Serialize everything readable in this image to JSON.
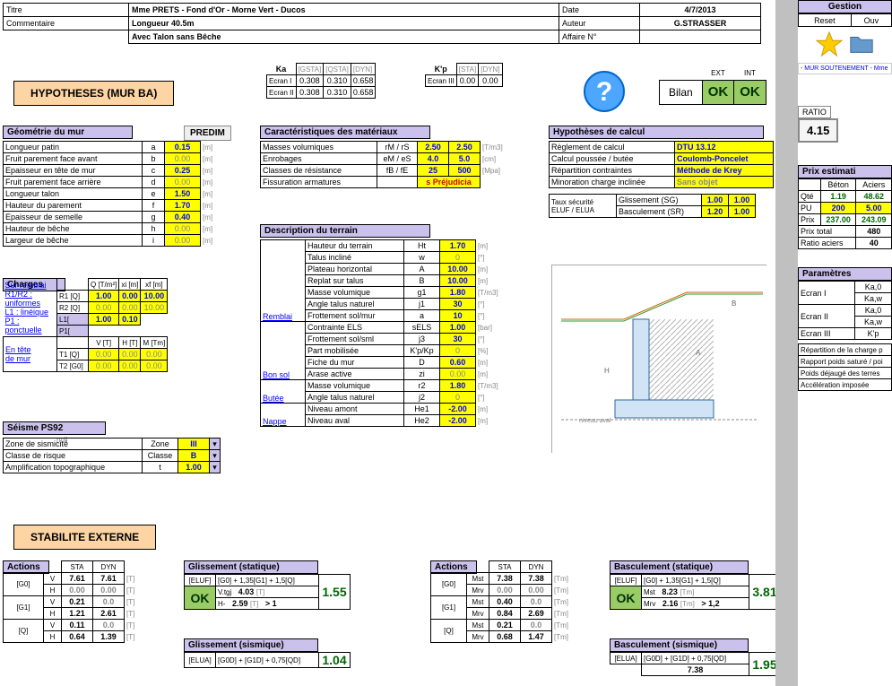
{
  "header": {
    "titre_label": "Titre",
    "titre_value": "Mme PRETS - Fond d'Or - Morne Vert - Ducos",
    "comment_label": "Commentaire",
    "comment_value1": "Longueur 40.5m",
    "comment_value2": "Avec Talon sans Bêche",
    "date_label": "Date",
    "date_value": "4/7/2013",
    "auteur_label": "Auteur",
    "auteur_value": "G.STRASSER",
    "affaire_label": "Affaire N°",
    "affaire_value": ""
  },
  "hypotheses_title": "HYPOTHESES (MUR BA)",
  "ka_table": {
    "ka_label": "Ka",
    "kp_label": "K'p",
    "cols1": [
      "[GSTA]",
      "[QSTA]",
      "[DYN]"
    ],
    "cols2": [
      "[STA]",
      "[DYN]"
    ],
    "ecran1": "Ecran I",
    "r1": [
      "0.308",
      "0.310",
      "0.658"
    ],
    "ecran2": "Ecran II",
    "r2": [
      "0.308",
      "0.310",
      "0.658"
    ],
    "ecran3": "Ecran III",
    "r3": [
      "0.00",
      "0.00"
    ]
  },
  "bilan": {
    "label": "Bilan",
    "ext": "EXT",
    "int": "INT",
    "ok1": "OK",
    "ok2": "OK"
  },
  "predim_btn": "PREDIM",
  "geom": {
    "hdr": "Géométrie du mur",
    "rows": [
      {
        "label": "Longueur patin",
        "sym": "a",
        "val": "0.15",
        "u": "[m]"
      },
      {
        "label": "Fruit parement face avant",
        "sym": "b",
        "val": "0.00",
        "u": "[m]"
      },
      {
        "label": "Epaisseur en tête de mur",
        "sym": "c",
        "val": "0.25",
        "u": "[m]"
      },
      {
        "label": "Fruit parement face arrière",
        "sym": "d",
        "val": "0.00",
        "u": "[m]"
      },
      {
        "label": "Longueur talon",
        "sym": "e",
        "val": "1.50",
        "u": "[m]"
      },
      {
        "label": "Hauteur du parement",
        "sym": "f",
        "val": "1.70",
        "u": "[m]"
      },
      {
        "label": "Epaisseur de semelle",
        "sym": "g",
        "val": "0.40",
        "u": "[m]"
      },
      {
        "label": "Hauteur de bêche",
        "sym": "h",
        "val": "0.00",
        "u": "[m]"
      },
      {
        "label": "Largeur de bêche",
        "sym": "i",
        "val": "0.00",
        "u": "[m]"
      }
    ]
  },
  "charges": {
    "hdr": "Charges",
    "sub1": "Sur remblai",
    "sub2": "R1/R2 :",
    "sub3": "uniformes",
    "sub4": "L1 : linéique",
    "sub5": "P1 : ponctuelle",
    "sub6": "En tête",
    "sub7": "de mur",
    "cols": [
      "Q [T/m²]",
      "xi [m]",
      "xf [m]"
    ],
    "R1": "R1 [Q]",
    "R1v": [
      "1.00",
      "0.00",
      "10.00"
    ],
    "R2": "R2 [Q]",
    "R2v": [
      "0.00",
      "0.00",
      "10.00"
    ],
    "L1": "L1[",
    "P1": "P1[",
    "L1P1": [
      "1.00",
      "0.10"
    ],
    "cols2": [
      "V [T]",
      "H [T]",
      "M [Tm]"
    ],
    "T1": "T1 [Q]",
    "T1v": [
      "0.00",
      "0.00",
      "0.00"
    ],
    "T2": "T2 [G0]",
    "T2v": [
      "0.00",
      "0.00",
      "0.00"
    ]
  },
  "seisme": {
    "hdr": "Séisme PS92",
    "null": "null",
    "rows": [
      {
        "label": "Zone de sismicité",
        "s": "Zone",
        "v": "III"
      },
      {
        "label": "Classe de risque",
        "s": "Classe",
        "v": "B"
      },
      {
        "label": "Amplification topographique",
        "s": "t",
        "v": "1.00"
      }
    ]
  },
  "materiaux": {
    "hdr": "Caractéristiques des matériaux",
    "rows": [
      {
        "label": "Masses volumiques",
        "s": "rM / rS",
        "v1": "2.50",
        "v2": "2.50",
        "u": "[T/m3]"
      },
      {
        "label": "Enrobages",
        "s": "eM / eS",
        "v1": "4.0",
        "v2": "5.0",
        "u": "[cm]"
      },
      {
        "label": "Classes de résistance",
        "s": "fB / fE",
        "v1": "25",
        "v2": "500",
        "u": "[Mpa]"
      },
      {
        "label": "Fissuration armatures",
        "s": "",
        "v1": "s Préjudicia",
        "v2": "",
        "u": ""
      }
    ]
  },
  "terrain": {
    "hdr": "Description du terrain",
    "remblai": "Remblai",
    "bonsol": "Bon sol",
    "butee": "Butée",
    "nappe": "Nappe",
    "rows": [
      {
        "g": "r",
        "label": "Hauteur du terrain",
        "s": "Ht",
        "v": "1.70",
        "u": "[m]"
      },
      {
        "g": "r",
        "label": "Talus incliné",
        "s": "w",
        "v": "0",
        "u": "[°]"
      },
      {
        "g": "r",
        "label": "Plateau horizontal",
        "s": "A",
        "v": "10.00",
        "u": "[m]"
      },
      {
        "g": "r",
        "label": "Replat sur talus",
        "s": "B",
        "v": "10.00",
        "u": "[m]"
      },
      {
        "g": "r",
        "label": "Masse volumique",
        "s": "g1",
        "v": "1.80",
        "u": "[T/m3]"
      },
      {
        "g": "r",
        "label": "Angle talus naturel",
        "s": "j1",
        "v": "30",
        "u": "[°]"
      },
      {
        "g": "r",
        "label": "Frottement sol/mur",
        "s": "a",
        "v": "10",
        "u": "[°]"
      },
      {
        "g": "b",
        "label": "Contrainte ELS",
        "s": "sELS",
        "v": "1.00",
        "u": "[bar]"
      },
      {
        "g": "b",
        "label": "Frottement sol/sml",
        "s": "j3",
        "v": "30",
        "u": "[°]"
      },
      {
        "g": "b",
        "label": "Part mobilisée",
        "s": "K'p/Kp",
        "v": "0",
        "u": "[%]"
      },
      {
        "g": "b",
        "label": "Fiche du mur",
        "s": "D",
        "v": "0.60",
        "u": "[m]"
      },
      {
        "g": "b",
        "label": "Arase active",
        "s": "zi",
        "v": "0.00",
        "u": "[m]"
      },
      {
        "g": "u",
        "label": "Masse volumique",
        "s": "r2",
        "v": "1.80",
        "u": "[T/m3]"
      },
      {
        "g": "u",
        "label": "Angle talus naturel",
        "s": "j2",
        "v": "0",
        "u": "[°]"
      },
      {
        "g": "n",
        "label": "Niveau amont",
        "s": "He1",
        "v": "-2.00",
        "u": "[m]"
      },
      {
        "g": "n",
        "label": "Niveau aval",
        "s": "He2",
        "v": "-2.00",
        "u": "[m]"
      }
    ]
  },
  "hypcalc": {
    "hdr": "Hypothèses de calcul",
    "rows": [
      {
        "label": "Règlement de calcul",
        "v": "DTU 13.12"
      },
      {
        "label": "Calcul poussée / butée",
        "v": "Coulomb-Poncelet"
      },
      {
        "label": "Répartition contraintes",
        "v": "Méthode de Krey"
      },
      {
        "label": "Minoration charge inclinée",
        "v": "Sans objet"
      }
    ],
    "taux": "Taux sécurité",
    "eluf": "ELUF / ELUA",
    "gliss": "Glissement (SG)",
    "gv1": "1.00",
    "gv2": "1.00",
    "basc": "Basculement (SR)",
    "bv1": "1.20",
    "bv2": "1.00"
  },
  "stab_ext_title": "STABILITE EXTERNE",
  "actions1": {
    "hdr": "Actions",
    "c1": "STA",
    "c2": "DYN",
    "g0": "[G0]",
    "g1": "[G1]",
    "q": "[Q]",
    "rows": [
      [
        "V",
        "7.61",
        "7.61",
        "[T]"
      ],
      [
        "H",
        "0.00",
        "0.00",
        "[T]"
      ],
      [
        "V",
        "0.21",
        "0.0",
        "[T]"
      ],
      [
        "H",
        "1.21",
        "2.61",
        "[T]"
      ],
      [
        "V",
        "0.11",
        "0.0",
        "[T]"
      ],
      [
        "H",
        "0.64",
        "1.39",
        "[T]"
      ]
    ]
  },
  "gliss_sta": {
    "hdr": "Glissement (statique)",
    "eluf": "[ELUF]",
    "f": "[G0] + 1,35[G1] + 1,5[Q]",
    "val": "1.55",
    "ok": "OK",
    "r1": [
      "V.tgj",
      "4.03",
      "[T]"
    ],
    "r2": [
      "H-",
      "2.59",
      "[T]",
      "> 1"
    ]
  },
  "gliss_sis": {
    "hdr": "Glissement (sismique)",
    "elua": "[ELUA]",
    "f": "[G0D] + [G1D] + 0,75[QD]",
    "val": "1.04"
  },
  "actions2": {
    "hdr": "Actions",
    "c1": "STA",
    "c2": "DYN",
    "g0": "[G0]",
    "g1": "[G1]",
    "q": "[Q]",
    "rows": [
      [
        "Mst",
        "7.38",
        "7.38",
        "[Tm]"
      ],
      [
        "Mrv",
        "0.00",
        "0.00",
        "[Tm]"
      ],
      [
        "Mst",
        "0.40",
        "0.0",
        "[Tm]"
      ],
      [
        "Mrv",
        "0.84",
        "2.69",
        "[Tm]"
      ],
      [
        "Mst",
        "0.21",
        "0.0",
        "[Tm]"
      ],
      [
        "Mrv",
        "0.68",
        "1.47",
        "[Tm]"
      ]
    ]
  },
  "basc_sta": {
    "hdr": "Basculement (statique)",
    "eluf": "[ELUF]",
    "f": "[G0] + 1,35[G1] + 1,5[Q]",
    "val": "3.81",
    "ok": "OK",
    "r1": [
      "Mst",
      "8.23",
      "[Tm]"
    ],
    "r2": [
      "Mrv",
      "2.16",
      "[Tm]",
      "> 1,2"
    ]
  },
  "basc_sis": {
    "hdr": "Basculement (sismique)",
    "elua": "[ELUA]",
    "f": "[G0D] + [G1D] + 0,75[QD]",
    "val": "1.95",
    "r1v": "7.38"
  },
  "rpanel": {
    "gestion": "Gestion",
    "reset": "Reset",
    "ouv": "Ouv",
    "mur": "- MUR SOUTENEMENT - Mme",
    "ratio_label": "RATIO",
    "ratio": "4.15",
    "prix_hdr": "Prix estimati",
    "pc": [
      "",
      "Béton",
      "Aciers"
    ],
    "qte": [
      "Qté",
      "1.19",
      "48.62"
    ],
    "pu": [
      "PU",
      "200",
      "5.00"
    ],
    "prix": [
      "Prix",
      "237.00",
      "243.09"
    ],
    "ptot": [
      "Prix total",
      "480"
    ],
    "ra": [
      "Ratio aciers",
      "40"
    ],
    "param_hdr": "Paramètres",
    "e1": "Ecran I",
    "e2": "Ecran II",
    "e3": "Ecran III",
    "ka0": "Ka,0",
    "kaw": "Ka,w",
    "kp": "K'p",
    "lines": [
      "Répartition de la charge p",
      "Rapport poids saturé / poi",
      "Poids déjaugé des terres",
      "Accélération imposée"
    ]
  }
}
